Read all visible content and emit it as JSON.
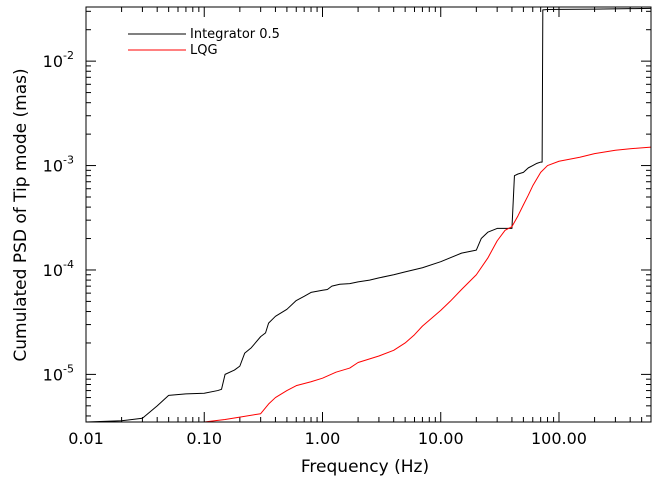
{
  "chart_data": {
    "type": "line",
    "title": "",
    "xlabel": "Frequency (Hz)",
    "ylabel": "Cumulated PSD of Tip mode (mas)",
    "xscale": "log",
    "yscale": "log",
    "xlim": [
      0.01,
      600
    ],
    "ylim": [
      3.5e-06,
      0.033
    ],
    "grid": false,
    "legend_position": "top-left",
    "x_ticks": [
      {
        "value": 0.01,
        "label": "0.01"
      },
      {
        "value": 0.1,
        "label": "0.10"
      },
      {
        "value": 1,
        "label": "1.00"
      },
      {
        "value": 10,
        "label": "10.00"
      },
      {
        "value": 100,
        "label": "100.00"
      }
    ],
    "y_ticks": [
      {
        "value": 1e-05,
        "base": "10",
        "exp": "-5"
      },
      {
        "value": 0.0001,
        "base": "10",
        "exp": "-4"
      },
      {
        "value": 0.001,
        "base": "10",
        "exp": "-3"
      },
      {
        "value": 0.01,
        "base": "10",
        "exp": "-2"
      }
    ],
    "series": [
      {
        "name": "Integrator 0.5",
        "color": "#000000",
        "x": [
          0.01,
          0.02,
          0.03,
          0.04,
          0.05,
          0.07,
          0.1,
          0.13,
          0.14,
          0.15,
          0.18,
          0.2,
          0.22,
          0.25,
          0.3,
          0.33,
          0.35,
          0.4,
          0.5,
          0.6,
          0.7,
          0.8,
          1.0,
          1.1,
          1.2,
          1.4,
          1.7,
          2,
          2.5,
          3,
          4,
          5,
          7,
          10,
          15,
          20,
          22,
          25,
          30,
          35,
          40,
          42,
          45,
          50,
          55,
          60,
          65,
          70,
          72,
          73,
          80,
          100,
          200,
          400,
          600
        ],
        "y": [
          3.5e-06,
          3.6e-06,
          3.8e-06,
          5e-06,
          6.3e-06,
          6.5e-06,
          6.6e-06,
          7e-06,
          7.2e-06,
          1e-05,
          1.1e-05,
          1.2e-05,
          1.6e-05,
          1.8e-05,
          2.3e-05,
          2.5e-05,
          3.1e-05,
          3.6e-05,
          4.2e-05,
          5.1e-05,
          5.6e-05,
          6.1e-05,
          6.4e-05,
          6.5e-05,
          7e-05,
          7.3e-05,
          7.4e-05,
          7.7e-05,
          8e-05,
          8.4e-05,
          9e-05,
          9.6e-05,
          0.000105,
          0.00012,
          0.000145,
          0.000155,
          0.0002,
          0.00023,
          0.00025,
          0.00025,
          0.00025,
          0.0008,
          0.00083,
          0.00086,
          0.00095,
          0.001,
          0.00105,
          0.00108,
          0.00108,
          0.031,
          0.0312,
          0.0313,
          0.0315,
          0.0318,
          0.032
        ]
      },
      {
        "name": "LQG",
        "color": "#ff0000",
        "x": [
          0.01,
          0.1,
          0.15,
          0.2,
          0.3,
          0.35,
          0.4,
          0.5,
          0.6,
          0.8,
          1.0,
          1.3,
          1.7,
          2,
          3,
          4,
          5,
          6,
          7,
          8,
          10,
          12,
          15,
          20,
          25,
          30,
          35,
          40,
          45,
          50,
          55,
          60,
          70,
          80,
          100,
          150,
          200,
          300,
          400,
          600
        ],
        "y": [
          3.5e-06,
          3.5e-06,
          3.7e-06,
          3.9e-06,
          4.2e-06,
          5.2e-06,
          6e-06,
          7e-06,
          7.8e-06,
          8.5e-06,
          9.2e-06,
          1.05e-05,
          1.15e-05,
          1.3e-05,
          1.5e-05,
          1.7e-05,
          2e-05,
          2.4e-05,
          2.9e-05,
          3.3e-05,
          4.1e-05,
          5e-05,
          6.5e-05,
          9e-05,
          0.00013,
          0.00019,
          0.00024,
          0.00026,
          0.00033,
          0.00042,
          0.00052,
          0.00064,
          0.00086,
          0.001,
          0.0011,
          0.0012,
          0.0013,
          0.0014,
          0.00145,
          0.0015
        ]
      }
    ]
  }
}
